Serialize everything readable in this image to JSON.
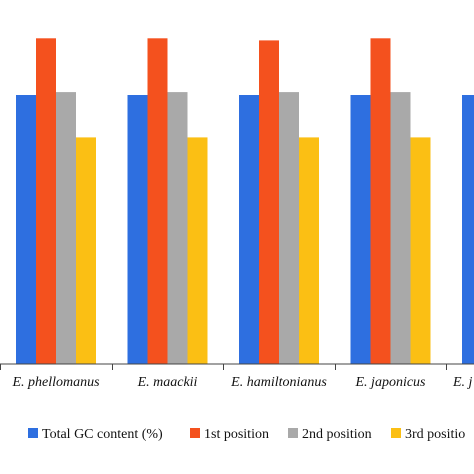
{
  "chart_data": {
    "type": "bar",
    "categories": [
      "E. phellomanus",
      "E. maackii",
      "E. hamiltonianus",
      "E. japonicus",
      "E. j"
    ],
    "series": [
      {
        "name": "Total GC content (%)",
        "color": "#2E6FE0",
        "values": [
          38.0,
          38.0,
          38.0,
          38.0,
          38.0
        ]
      },
      {
        "name": "1st position",
        "color": "#F4511E",
        "values": [
          46.0,
          46.0,
          45.7,
          46.0,
          null
        ]
      },
      {
        "name": "2nd position",
        "color": "#A9A9A9",
        "values": [
          38.4,
          38.4,
          38.4,
          38.4,
          null
        ]
      },
      {
        "name": "3rd position",
        "color": "#FBBF14",
        "values": [
          32.0,
          32.0,
          32.0,
          32.0,
          null
        ]
      }
    ],
    "legend_labels": [
      "Total GC content (%)",
      "1st position",
      "2nd position",
      "3rd positio"
    ],
    "ylim": [
      0,
      50
    ],
    "grid": false,
    "legend": "bottom",
    "axis_color": "#444444"
  }
}
